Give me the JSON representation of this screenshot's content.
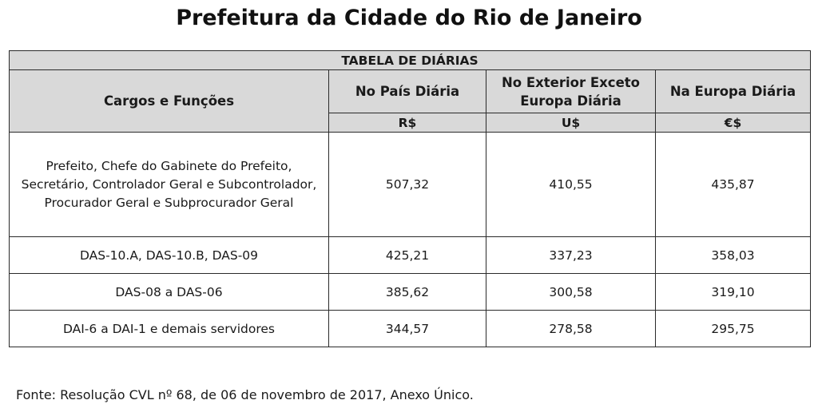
{
  "title": "Prefeitura da Cidade do Rio de Janeiro",
  "table": {
    "caption": "TABELA DE DIÁRIAS",
    "col_role": "Cargos e Funções",
    "col_domestic": "No País Diária",
    "col_abroad": "No Exterior Exceto Europa Diária",
    "col_europe": "Na Europa Diária",
    "currency_domestic": "R$",
    "currency_abroad": "U$",
    "currency_europe": "€$",
    "rows": [
      {
        "role": "Prefeito, Chefe do Gabinete do Prefeito, Secretário, Controlador Geral e Subcontrolador, Procurador Geral e Subprocurador Geral",
        "domestic": "507,32",
        "abroad": "410,55",
        "europe": "435,87"
      },
      {
        "role": "DAS-10.A, DAS-10.B, DAS-09",
        "domestic": "425,21",
        "abroad": "337,23",
        "europe": "358,03"
      },
      {
        "role": "DAS-08 a DAS-06",
        "domestic": "385,62",
        "abroad": "300,58",
        "europe": "319,10"
      },
      {
        "role": "DAI-6 a DAI-1 e demais servidores",
        "domestic": "344,57",
        "abroad": "278,58",
        "europe": "295,75"
      }
    ]
  },
  "source": "Fonte: Resolução CVL nº 68, de 06 de novembro de 2017, Anexo Único."
}
